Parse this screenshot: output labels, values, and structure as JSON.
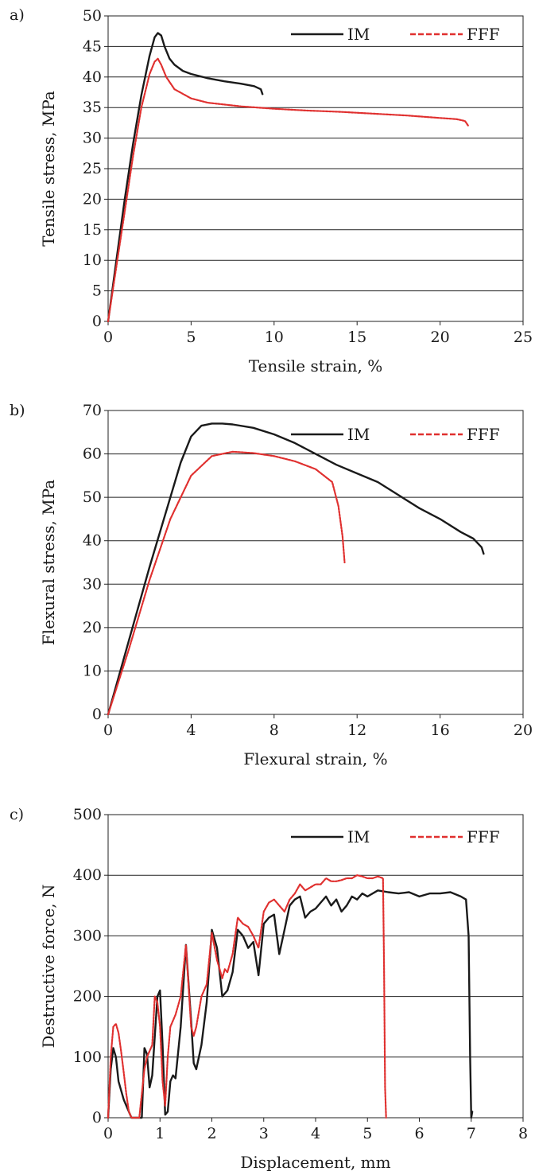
{
  "chart_data": [
    {
      "panel_label": "a)",
      "type": "line",
      "xlabel": "Tensile strain, %",
      "ylabel": "Tensile stress, MPa",
      "xlim": [
        0,
        25
      ],
      "ylim": [
        0,
        50
      ],
      "x_ticks": [
        0,
        5,
        10,
        15,
        20,
        25
      ],
      "y_ticks": [
        0,
        5,
        10,
        15,
        20,
        25,
        30,
        35,
        40,
        45,
        50
      ],
      "grid": "horizontal",
      "legend": "top-right",
      "series": [
        {
          "name": "IM",
          "color": "#1a1a1a",
          "style": "solid",
          "x": [
            0,
            0.5,
            1.0,
            1.5,
            2.0,
            2.5,
            2.8,
            3.0,
            3.2,
            3.4,
            3.7,
            4.0,
            4.5,
            5.0,
            6.0,
            7.0,
            8.0,
            8.8,
            9.2,
            9.3
          ],
          "y": [
            0,
            10,
            20,
            29,
            37,
            43.5,
            46.5,
            47.2,
            46.8,
            45.0,
            43.0,
            42.0,
            41.0,
            40.5,
            39.8,
            39.3,
            38.9,
            38.5,
            38.0,
            37.2
          ]
        },
        {
          "name": "FFF",
          "color": "#e0302f",
          "style": "dashed",
          "x": [
            0,
            0.5,
            1.0,
            1.5,
            2.0,
            2.5,
            2.8,
            3.0,
            3.2,
            3.5,
            4.0,
            5.0,
            6.0,
            8.0,
            10.0,
            12.0,
            14.0,
            16.0,
            18.0,
            20.0,
            21.0,
            21.5,
            21.7
          ],
          "y": [
            0,
            9,
            18,
            27,
            35,
            40.5,
            42.5,
            43.0,
            42.0,
            40.0,
            38.0,
            36.5,
            35.8,
            35.2,
            34.8,
            34.5,
            34.3,
            34.0,
            33.7,
            33.3,
            33.1,
            32.8,
            32.0
          ]
        }
      ]
    },
    {
      "panel_label": "b)",
      "type": "line",
      "xlabel": "Flexural strain, %",
      "ylabel": "Flexural stress, MPa",
      "xlim": [
        0,
        20
      ],
      "ylim": [
        0,
        70
      ],
      "x_ticks": [
        0,
        4,
        8,
        12,
        16,
        20
      ],
      "y_ticks": [
        0,
        10,
        20,
        30,
        40,
        50,
        60,
        70
      ],
      "grid": "horizontal",
      "legend": "top-right",
      "series": [
        {
          "name": "IM",
          "color": "#1a1a1a",
          "style": "solid",
          "x": [
            0,
            1,
            2,
            3,
            3.5,
            4,
            4.5,
            5,
            5.5,
            6,
            7,
            8,
            9,
            10,
            11,
            12,
            13,
            14,
            15,
            16,
            17,
            17.6,
            18.0,
            18.1
          ],
          "y": [
            0,
            17,
            34,
            50,
            58,
            64,
            66.5,
            67.0,
            67.0,
            66.8,
            66.0,
            64.5,
            62.5,
            60.0,
            57.5,
            55.5,
            53.5,
            50.5,
            47.5,
            45.0,
            42.0,
            40.5,
            38.5,
            37.0
          ]
        },
        {
          "name": "FFF",
          "color": "#e0302f",
          "style": "dashed",
          "x": [
            0,
            1,
            2,
            3,
            4,
            5,
            6,
            7,
            8,
            9,
            10,
            10.8,
            11.1,
            11.3,
            11.4
          ],
          "y": [
            0,
            15,
            31,
            45,
            55,
            59.5,
            60.5,
            60.2,
            59.5,
            58.3,
            56.5,
            53.5,
            48.0,
            41.0,
            35.0
          ]
        }
      ]
    },
    {
      "panel_label": "c)",
      "type": "line",
      "xlabel": "Displacement, mm",
      "ylabel": "Destructive force, N",
      "xlim": [
        0,
        8
      ],
      "ylim": [
        0,
        500
      ],
      "x_ticks": [
        0,
        1,
        2,
        3,
        4,
        5,
        6,
        7,
        8
      ],
      "y_ticks": [
        0,
        100,
        200,
        300,
        400,
        500
      ],
      "grid": "horizontal",
      "legend": "top-right",
      "series": [
        {
          "name": "IM",
          "color": "#1a1a1a",
          "style": "solid",
          "x": [
            0,
            0.05,
            0.1,
            0.15,
            0.2,
            0.3,
            0.4,
            0.45,
            0.5,
            0.65,
            0.7,
            0.75,
            0.8,
            0.85,
            0.95,
            1.0,
            1.05,
            1.1,
            1.15,
            1.2,
            1.25,
            1.3,
            1.4,
            1.5,
            1.6,
            1.65,
            1.7,
            1.8,
            1.9,
            2.0,
            2.1,
            2.2,
            2.3,
            2.4,
            2.5,
            2.6,
            2.7,
            2.8,
            2.9,
            3.0,
            3.1,
            3.2,
            3.3,
            3.4,
            3.5,
            3.6,
            3.7,
            3.8,
            3.9,
            4.0,
            4.1,
            4.2,
            4.3,
            4.4,
            4.5,
            4.6,
            4.7,
            4.8,
            4.9,
            5.0,
            5.2,
            5.4,
            5.6,
            5.8,
            6.0,
            6.2,
            6.4,
            6.6,
            6.8,
            6.9,
            6.95,
            6.98,
            7.0,
            7.02
          ],
          "y": [
            0,
            80,
            115,
            100,
            60,
            30,
            10,
            0,
            0,
            0,
            115,
            105,
            50,
            70,
            200,
            210,
            120,
            5,
            10,
            60,
            70,
            65,
            150,
            285,
            160,
            90,
            80,
            120,
            190,
            310,
            280,
            200,
            210,
            240,
            310,
            300,
            280,
            290,
            235,
            320,
            330,
            335,
            270,
            310,
            350,
            360,
            365,
            330,
            340,
            345,
            355,
            365,
            350,
            360,
            340,
            350,
            365,
            360,
            370,
            365,
            375,
            372,
            370,
            372,
            365,
            370,
            370,
            372,
            365,
            360,
            300,
            100,
            0,
            10
          ],
          "visible_end_x": 7.02
        },
        {
          "name": "FFF",
          "color": "#e0302f",
          "style": "dashed",
          "x": [
            0,
            0.05,
            0.1,
            0.15,
            0.2,
            0.25,
            0.3,
            0.35,
            0.4,
            0.45,
            0.5,
            0.6,
            0.7,
            0.75,
            0.8,
            0.85,
            0.9,
            0.95,
            1.0,
            1.05,
            1.1,
            1.15,
            1.2,
            1.3,
            1.4,
            1.5,
            1.55,
            1.6,
            1.65,
            1.7,
            1.8,
            1.9,
            2.0,
            2.1,
            2.2,
            2.25,
            2.3,
            2.4,
            2.5,
            2.6,
            2.7,
            2.8,
            2.9,
            3.0,
            3.1,
            3.2,
            3.3,
            3.4,
            3.5,
            3.6,
            3.7,
            3.8,
            3.9,
            4.0,
            4.1,
            4.2,
            4.3,
            4.4,
            4.5,
            4.6,
            4.7,
            4.8,
            4.9,
            5.0,
            5.1,
            5.2,
            5.3,
            5.32,
            5.34,
            5.36
          ],
          "y": [
            0,
            100,
            150,
            155,
            140,
            110,
            75,
            40,
            10,
            0,
            0,
            0,
            80,
            100,
            110,
            120,
            200,
            190,
            150,
            60,
            20,
            100,
            150,
            170,
            200,
            285,
            220,
            150,
            135,
            150,
            200,
            220,
            305,
            260,
            230,
            245,
            240,
            270,
            330,
            320,
            315,
            300,
            280,
            340,
            355,
            360,
            350,
            340,
            360,
            370,
            385,
            375,
            380,
            385,
            385,
            395,
            390,
            390,
            392,
            395,
            395,
            400,
            398,
            395,
            395,
            398,
            395,
            250,
            50,
            0
          ],
          "visible_end_x": 5.36
        }
      ]
    }
  ]
}
